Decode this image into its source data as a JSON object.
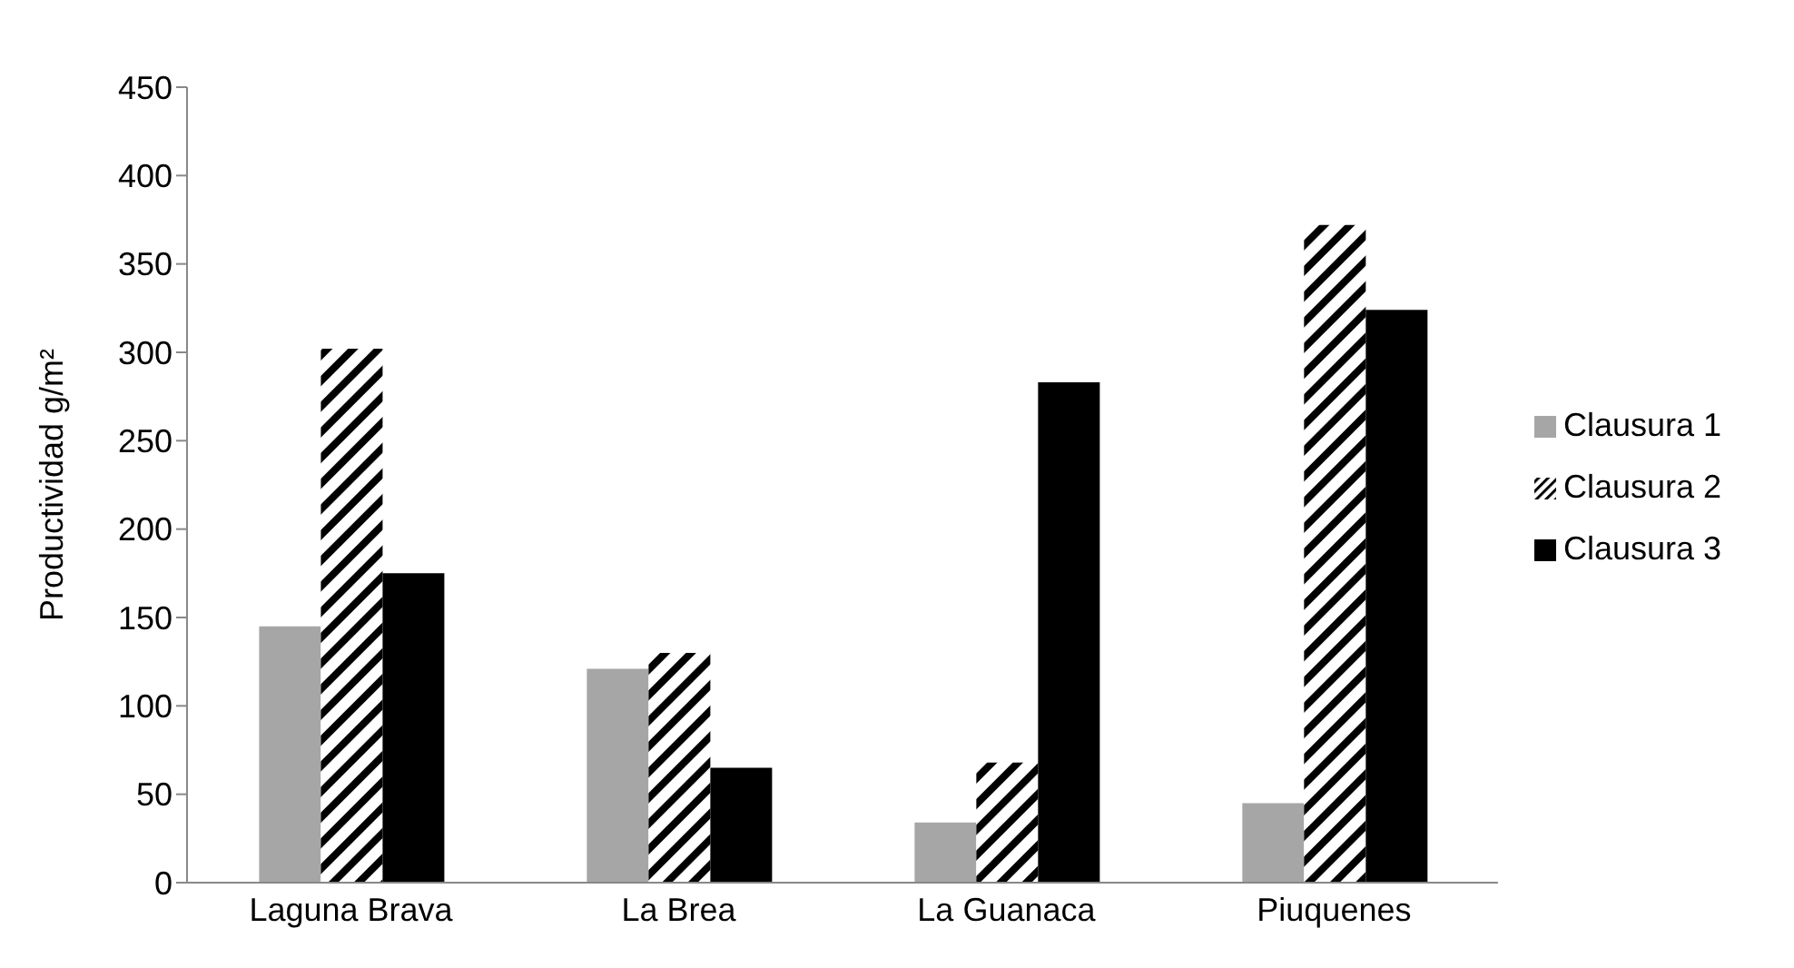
{
  "chart_data": {
    "type": "bar",
    "ylabel": "Productividad g/m²",
    "categories": [
      "Laguna Brava",
      "La Brea",
      "La Guanaca",
      "Piuquenes"
    ],
    "series": [
      {
        "name": "Clausura 1",
        "color": "#a6a6a6",
        "values": [
          145,
          121,
          34,
          45
        ]
      },
      {
        "name": "Clausura 2",
        "color": "#000000",
        "values": [
          302,
          130,
          68,
          372
        ]
      },
      {
        "name": "Clausura 3",
        "color": "#000000",
        "values": [
          175,
          65,
          283,
          324
        ]
      }
    ],
    "ylim": [
      0,
      450
    ],
    "yticks": [
      0,
      50,
      100,
      150,
      200,
      250,
      300,
      350,
      400,
      450
    ],
    "grid": false,
    "legend": "right"
  }
}
